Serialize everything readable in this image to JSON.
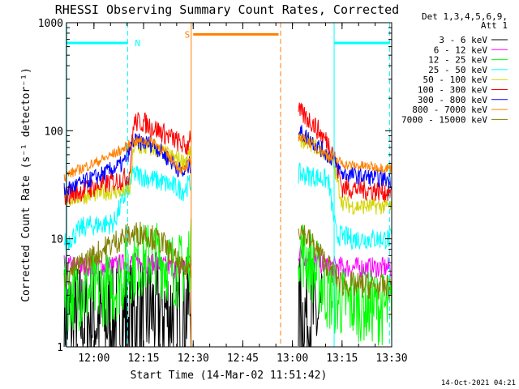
{
  "chart_data": {
    "type": "line",
    "title": "RHESSI Observing Summary Count Rates, Corrected",
    "xlabel": "Start Time (14-Mar-02 11:51:42)",
    "ylabel": "Corrected Count Rate (s⁻¹ detector⁻¹)",
    "y_scale": "log",
    "ylim": [
      1,
      1000
    ],
    "xlim": [
      "11:51:42",
      "13:30:00"
    ],
    "x_ticks": [
      "12:00",
      "12:15",
      "12:30",
      "12:45",
      "13:00",
      "13:15",
      "13:30"
    ],
    "y_ticks": [
      {
        "value": 1,
        "label": "1"
      },
      {
        "value": 10,
        "label": "10"
      },
      {
        "value": 100,
        "label": "100"
      },
      {
        "value": 1000,
        "label": "1000"
      }
    ],
    "legend_header": [
      "Det 1,3,4,5,6,9,",
      "Att 1"
    ],
    "legend_position": "right",
    "series": [
      {
        "name": "3 - 6 keV",
        "color": "#000000",
        "noise": 0.55,
        "values": [
          [
            11.85,
            1.8
          ],
          [
            12.1,
            1.8
          ],
          [
            12.2,
            2.0
          ],
          [
            12.35,
            2.2
          ],
          [
            12.45,
            2.0
          ],
          [
            12.48,
            2.5
          ],
          [
            13.05,
            2.0
          ],
          [
            13.15,
            1.8
          ]
        ]
      },
      {
        "name": "6 - 12 keV",
        "color": "#ff00ff",
        "noise": 0.1,
        "values": [
          [
            11.85,
            5.6
          ],
          [
            12.1,
            5.6
          ],
          [
            12.18,
            6.0
          ],
          [
            12.25,
            6.0
          ],
          [
            12.4,
            5.4
          ],
          [
            12.47,
            5.5
          ],
          [
            12.48,
            6.5
          ],
          [
            13.03,
            7.5
          ],
          [
            13.1,
            6.2
          ],
          [
            13.2,
            5.6
          ],
          [
            13.28,
            5.4
          ],
          [
            13.5,
            5.4
          ]
        ]
      },
      {
        "name": "12 - 25 keV",
        "color": "#00ff00",
        "noise": 0.35,
        "values": [
          [
            11.85,
            3.0
          ],
          [
            12.1,
            3.5
          ],
          [
            12.18,
            5.5
          ],
          [
            12.3,
            7.0
          ],
          [
            12.42,
            5.0
          ],
          [
            12.47,
            5.5
          ],
          [
            12.48,
            7.0
          ],
          [
            13.03,
            9.0
          ],
          [
            13.1,
            5.5
          ],
          [
            13.18,
            3.0
          ],
          [
            13.25,
            2.6
          ],
          [
            13.5,
            2.2
          ]
        ]
      },
      {
        "name": "25 - 50 keV",
        "color": "#00ffff",
        "noise": 0.1,
        "values": [
          [
            11.85,
            9.0
          ],
          [
            11.95,
            13.0
          ],
          [
            12.1,
            14.0
          ],
          [
            12.2,
            40.0
          ],
          [
            12.35,
            33.0
          ],
          [
            12.45,
            28.0
          ],
          [
            12.48,
            32.0
          ],
          [
            13.03,
            40.0
          ],
          [
            13.1,
            38.0
          ],
          [
            13.18,
            35.0
          ],
          [
            13.22,
            11.0
          ],
          [
            13.3,
            10.0
          ],
          [
            13.5,
            10.0
          ]
        ]
      },
      {
        "name": "50 - 100 keV",
        "color": "#d4d400",
        "noise": 0.08,
        "values": [
          [
            11.85,
            23.0
          ],
          [
            12.05,
            27.0
          ],
          [
            12.18,
            28.0
          ],
          [
            12.2,
            70.0
          ],
          [
            12.3,
            68.0
          ],
          [
            12.45,
            52.0
          ],
          [
            12.48,
            60.0
          ],
          [
            13.03,
            85.0
          ],
          [
            13.1,
            75.0
          ],
          [
            13.2,
            55.0
          ],
          [
            13.25,
            22.0
          ],
          [
            13.3,
            20.0
          ],
          [
            13.5,
            20.0
          ]
        ]
      },
      {
        "name": "100 - 300 keV",
        "color": "#ff0000",
        "noise": 0.1,
        "values": [
          [
            11.85,
            25.0
          ],
          [
            12.05,
            32.0
          ],
          [
            12.15,
            36.0
          ],
          [
            12.18,
            40.0
          ],
          [
            12.2,
            120.0
          ],
          [
            12.25,
            120.0
          ],
          [
            12.35,
            95.0
          ],
          [
            12.47,
            70.0
          ],
          [
            12.48,
            90.0
          ],
          [
            13.03,
            150.0
          ],
          [
            13.1,
            120.0
          ],
          [
            13.15,
            90.0
          ],
          [
            13.2,
            70.0
          ],
          [
            13.25,
            30.0
          ],
          [
            13.5,
            27.0
          ]
        ]
      },
      {
        "name": "300 - 800 keV",
        "color": "#0000ff",
        "noise": 0.08,
        "values": [
          [
            11.85,
            28.0
          ],
          [
            12.05,
            40.0
          ],
          [
            12.15,
            50.0
          ],
          [
            12.2,
            80.0
          ],
          [
            12.3,
            75.0
          ],
          [
            12.45,
            40.0
          ],
          [
            12.48,
            48.0
          ],
          [
            13.03,
            100.0
          ],
          [
            13.1,
            80.0
          ],
          [
            13.2,
            55.0
          ],
          [
            13.25,
            40.0
          ],
          [
            13.5,
            35.0
          ]
        ]
      },
      {
        "name": "800 - 7000 keV",
        "color": "#ff8000",
        "noise": 0.05,
        "values": [
          [
            11.85,
            38.0
          ],
          [
            12.05,
            55.0
          ],
          [
            12.15,
            68.0
          ],
          [
            12.2,
            80.0
          ],
          [
            12.3,
            80.0
          ],
          [
            12.45,
            42.0
          ],
          [
            12.48,
            50.0
          ],
          [
            13.03,
            90.0
          ],
          [
            13.1,
            75.0
          ],
          [
            13.2,
            55.0
          ],
          [
            13.28,
            48.0
          ],
          [
            13.5,
            45.0
          ]
        ]
      },
      {
        "name": "7000 - 15000 keV",
        "color": "#808000",
        "noise": 0.12,
        "values": [
          [
            11.85,
            4.5
          ],
          [
            12.0,
            7.0
          ],
          [
            12.15,
            10.5
          ],
          [
            12.25,
            11.5
          ],
          [
            12.35,
            9.0
          ],
          [
            12.45,
            5.0
          ],
          [
            12.48,
            5.5
          ],
          [
            13.03,
            13.0
          ],
          [
            13.1,
            9.0
          ],
          [
            13.2,
            5.0
          ],
          [
            13.25,
            3.8
          ],
          [
            13.5,
            3.5
          ]
        ]
      }
    ],
    "markers": [
      {
        "type": "line",
        "color": "#00ffff",
        "style": "solid",
        "x": 11.86
      },
      {
        "type": "line",
        "color": "#00ffff",
        "style": "dashed",
        "x": 12.17
      },
      {
        "type": "line",
        "color": "#00ffff",
        "style": "solid",
        "x": 13.21
      },
      {
        "type": "line",
        "color": "#00ffff",
        "style": "dashed",
        "x": 13.49
      },
      {
        "type": "line",
        "color": "#ff8000",
        "style": "solid",
        "x": 12.49
      },
      {
        "type": "line",
        "color": "#ff8000",
        "style": "dashed",
        "x": 12.94
      },
      {
        "type": "segment",
        "color": "#00ffff",
        "x0": 11.86,
        "x1": 12.17,
        "y": 650
      },
      {
        "type": "segment",
        "color": "#00ffff",
        "x0": 13.21,
        "x1": 13.49,
        "y": 650
      },
      {
        "type": "segment",
        "color": "#ff8000",
        "x0": 12.5,
        "x1": 12.93,
        "y": 780
      },
      {
        "type": "label",
        "text": "N",
        "color": "#00ffff",
        "x": 12.22,
        "y": 650
      },
      {
        "type": "label",
        "text": "S",
        "color": "#ff8000",
        "x": 12.47,
        "y": 780
      }
    ]
  },
  "footer": {
    "timestamp": "14-Oct-2021 04:21"
  }
}
